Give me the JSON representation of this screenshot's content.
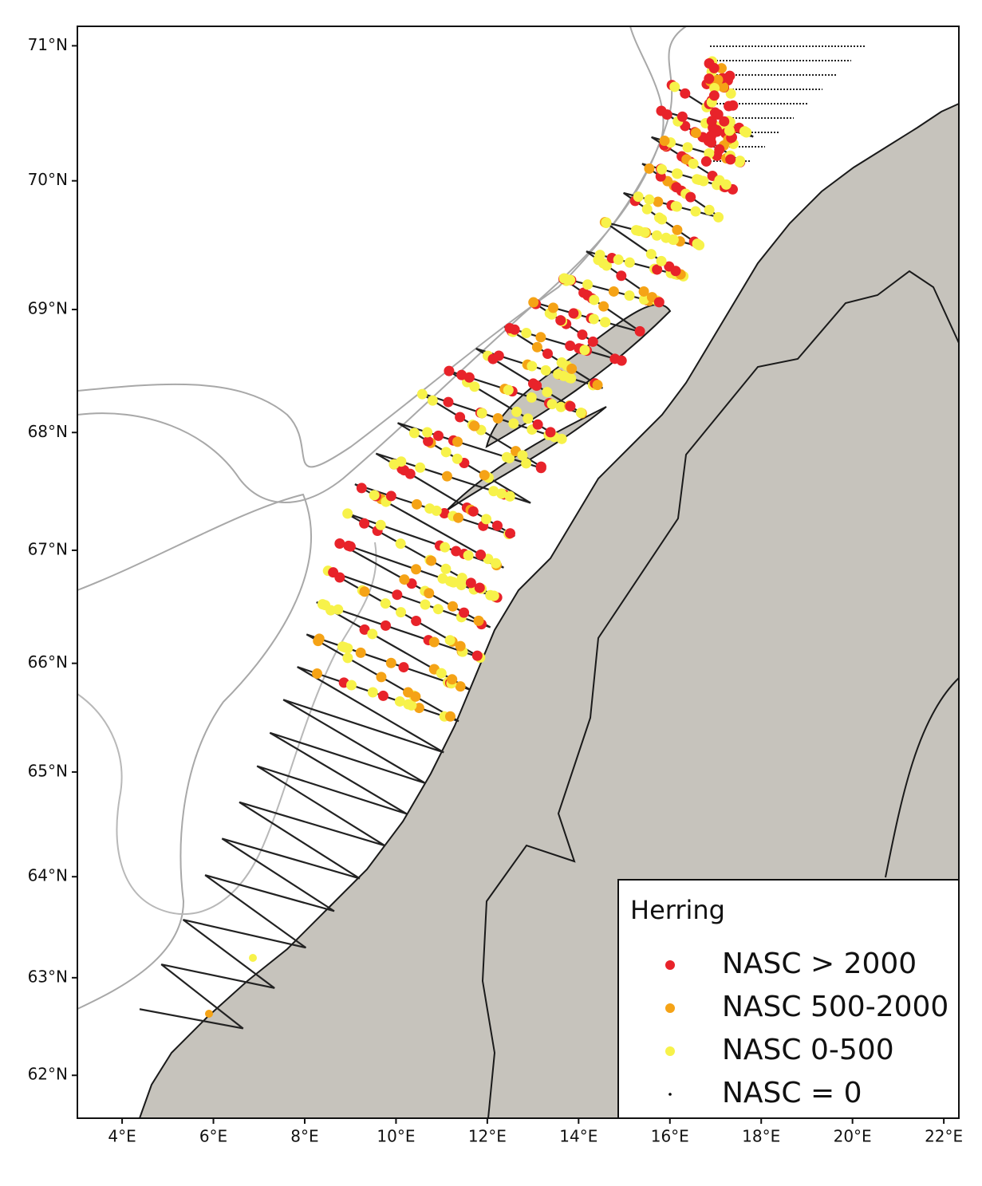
{
  "chart_data": {
    "type": "map",
    "xlim": [
      3.02,
      22.33
    ],
    "ylim": [
      61.55,
      71.14
    ],
    "xticks": [
      {
        "value": 4,
        "label": "4°E"
      },
      {
        "value": 6,
        "label": "6°E"
      },
      {
        "value": 8,
        "label": "8°E"
      },
      {
        "value": 10,
        "label": "10°E"
      },
      {
        "value": 12,
        "label": "12°E"
      },
      {
        "value": 14,
        "label": "14°E"
      },
      {
        "value": 16,
        "label": "16°E"
      },
      {
        "value": 18,
        "label": "18°E"
      },
      {
        "value": 20,
        "label": "20°E"
      },
      {
        "value": 22,
        "label": "22°E"
      }
    ],
    "yticks": [
      {
        "value": 62,
        "label": "62°N"
      },
      {
        "value": 63,
        "label": "63°N"
      },
      {
        "value": 64,
        "label": "64°N"
      },
      {
        "value": 65,
        "label": "65°N"
      },
      {
        "value": 66,
        "label": "66°N"
      },
      {
        "value": 67,
        "label": "67°N"
      },
      {
        "value": 68,
        "label": "68°N"
      },
      {
        "value": 69,
        "label": "69°N"
      },
      {
        "value": 70,
        "label": "70°N"
      },
      {
        "value": 71,
        "label": "71°N"
      }
    ],
    "legend": {
      "title": "Herring",
      "position": "lower right",
      "items": [
        {
          "label": "NASC > 2000",
          "color": "#e8232a"
        },
        {
          "label": "NASC 500-2000",
          "color": "#f5a316"
        },
        {
          "label": "NASC 0-500",
          "color": "#f7f24a"
        },
        {
          "label": "NASC = 0",
          "color": "#000000"
        }
      ]
    }
  }
}
